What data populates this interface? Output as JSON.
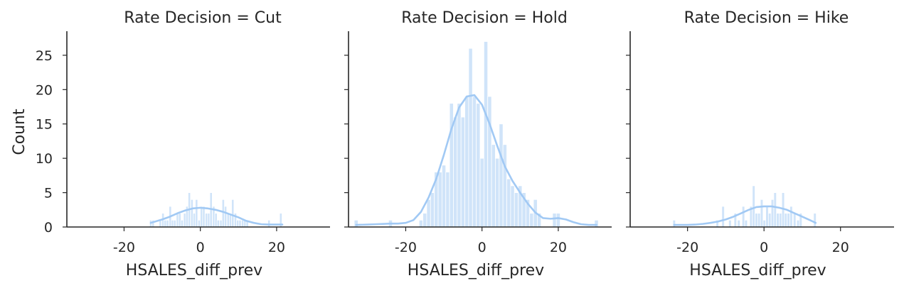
{
  "figure": {
    "ylabel": "Count",
    "color": "#a1c9f4",
    "edge_color": "#ffffff"
  },
  "chart_data": [
    {
      "type": "bar",
      "title": "Rate Decision = Cut",
      "xlabel": "HSALES_diff_prev",
      "ylabel": "Count",
      "xlim": [
        -35,
        34
      ],
      "ylim": [
        0,
        28.5
      ],
      "xticks": [
        -20,
        0,
        20
      ],
      "yticks": [
        0,
        5,
        10,
        15,
        20,
        25
      ],
      "bin_width": 0.63,
      "bins": [
        {
          "x": -13.0,
          "count": 1
        },
        {
          "x": -12.4,
          "count": 1
        },
        {
          "x": -11.7,
          "count": 0
        },
        {
          "x": -11.1,
          "count": 0
        },
        {
          "x": -10.5,
          "count": 1
        },
        {
          "x": -9.8,
          "count": 2
        },
        {
          "x": -9.2,
          "count": 1
        },
        {
          "x": -8.6,
          "count": 1
        },
        {
          "x": -7.9,
          "count": 3
        },
        {
          "x": -7.3,
          "count": 1
        },
        {
          "x": -6.7,
          "count": 1
        },
        {
          "x": -6.0,
          "count": 2
        },
        {
          "x": -5.4,
          "count": 2
        },
        {
          "x": -4.8,
          "count": 1
        },
        {
          "x": -4.1,
          "count": 2
        },
        {
          "x": -3.5,
          "count": 3
        },
        {
          "x": -2.9,
          "count": 5
        },
        {
          "x": -2.2,
          "count": 4
        },
        {
          "x": -1.6,
          "count": 2
        },
        {
          "x": -1.0,
          "count": 4
        },
        {
          "x": -0.3,
          "count": 1
        },
        {
          "x": 0.3,
          "count": 3
        },
        {
          "x": 0.9,
          "count": 3
        },
        {
          "x": 1.6,
          "count": 2
        },
        {
          "x": 2.2,
          "count": 2
        },
        {
          "x": 2.8,
          "count": 5
        },
        {
          "x": 3.5,
          "count": 3
        },
        {
          "x": 4.1,
          "count": 2
        },
        {
          "x": 4.7,
          "count": 1
        },
        {
          "x": 5.4,
          "count": 1
        },
        {
          "x": 6.0,
          "count": 4
        },
        {
          "x": 6.6,
          "count": 3
        },
        {
          "x": 7.3,
          "count": 2
        },
        {
          "x": 7.9,
          "count": 2
        },
        {
          "x": 8.5,
          "count": 4
        },
        {
          "x": 9.2,
          "count": 2
        },
        {
          "x": 9.8,
          "count": 1
        },
        {
          "x": 10.4,
          "count": 1
        },
        {
          "x": 11.1,
          "count": 1
        },
        {
          "x": 11.7,
          "count": 1
        },
        {
          "x": 12.3,
          "count": 1
        },
        {
          "x": 18.0,
          "count": 1
        },
        {
          "x": 21.1,
          "count": 2
        }
      ],
      "kde": {
        "x": [
          -13.0,
          -10,
          -8,
          -6,
          -4,
          -2,
          0,
          2,
          4,
          6,
          8,
          10,
          12,
          14,
          16,
          18,
          21.5
        ],
        "y": [
          0.6,
          1.1,
          1.5,
          2.0,
          2.4,
          2.7,
          2.8,
          2.7,
          2.5,
          2.2,
          1.8,
          1.4,
          0.9,
          0.6,
          0.4,
          0.35,
          0.35
        ]
      }
    },
    {
      "type": "bar",
      "title": "Rate Decision = Hold",
      "xlabel": "HSALES_diff_prev",
      "ylabel": "",
      "xlim": [
        -35,
        34
      ],
      "ylim": [
        0,
        28.5
      ],
      "xticks": [
        -20,
        0,
        20
      ],
      "yticks": [
        0,
        5,
        10,
        15,
        20,
        25
      ],
      "bin_width": 1.0,
      "bins": [
        {
          "x": -33.0,
          "count": 1
        },
        {
          "x": -24.0,
          "count": 1
        },
        {
          "x": -16.0,
          "count": 1
        },
        {
          "x": -15.0,
          "count": 2
        },
        {
          "x": -14.0,
          "count": 4
        },
        {
          "x": -13.0,
          "count": 5
        },
        {
          "x": -12.0,
          "count": 8
        },
        {
          "x": -11.0,
          "count": 8
        },
        {
          "x": -10.0,
          "count": 9
        },
        {
          "x": -9.0,
          "count": 8
        },
        {
          "x": -8.0,
          "count": 18
        },
        {
          "x": -7.0,
          "count": 16
        },
        {
          "x": -6.0,
          "count": 18
        },
        {
          "x": -5.0,
          "count": 16
        },
        {
          "x": -4.0,
          "count": 19
        },
        {
          "x": -3.0,
          "count": 26
        },
        {
          "x": -2.0,
          "count": 19
        },
        {
          "x": -1.0,
          "count": 18
        },
        {
          "x": 0.0,
          "count": 10
        },
        {
          "x": 1.0,
          "count": 27
        },
        {
          "x": 2.0,
          "count": 19
        },
        {
          "x": 3.0,
          "count": 12
        },
        {
          "x": 4.0,
          "count": 10
        },
        {
          "x": 5.0,
          "count": 15
        },
        {
          "x": 6.0,
          "count": 12
        },
        {
          "x": 7.0,
          "count": 7
        },
        {
          "x": 8.0,
          "count": 6
        },
        {
          "x": 9.0,
          "count": 5
        },
        {
          "x": 10.0,
          "count": 6
        },
        {
          "x": 11.0,
          "count": 5
        },
        {
          "x": 12.0,
          "count": 4
        },
        {
          "x": 13.0,
          "count": 2
        },
        {
          "x": 14.0,
          "count": 4
        },
        {
          "x": 15.0,
          "count": 2
        },
        {
          "x": 19.0,
          "count": 2
        },
        {
          "x": 20.0,
          "count": 2
        },
        {
          "x": 30.0,
          "count": 1
        }
      ],
      "kde": {
        "x": [
          -33,
          -30,
          -28,
          -26,
          -24,
          -22,
          -20,
          -18,
          -16,
          -14,
          -12,
          -10,
          -8,
          -6,
          -4,
          -2,
          0,
          2,
          4,
          6,
          8,
          10,
          12,
          14,
          16,
          18,
          20,
          22,
          24,
          26,
          28,
          30
        ],
        "y": [
          0.3,
          0.35,
          0.4,
          0.45,
          0.5,
          0.5,
          0.6,
          1.0,
          2.2,
          4.3,
          7.0,
          10.5,
          14.3,
          17.4,
          19.0,
          19.2,
          17.8,
          15.0,
          11.8,
          8.8,
          6.7,
          5.0,
          3.4,
          2.1,
          1.3,
          1.2,
          1.3,
          1.1,
          0.7,
          0.4,
          0.3,
          0.3
        ]
      }
    },
    {
      "type": "bar",
      "title": "Rate Decision = Hike",
      "xlabel": "HSALES_diff_prev",
      "ylabel": "",
      "xlim": [
        -35,
        34
      ],
      "ylim": [
        0,
        28.5
      ],
      "xticks": [
        -20,
        0,
        20
      ],
      "yticks": [
        0,
        5,
        10,
        15,
        20,
        25
      ],
      "bin_width": 0.7,
      "bins": [
        {
          "x": -23.5,
          "count": 1
        },
        {
          "x": -12.2,
          "count": 1
        },
        {
          "x": -10.7,
          "count": 3
        },
        {
          "x": -8.9,
          "count": 1
        },
        {
          "x": -7.5,
          "count": 2
        },
        {
          "x": -6.6,
          "count": 1
        },
        {
          "x": -5.4,
          "count": 3
        },
        {
          "x": -4.7,
          "count": 1
        },
        {
          "x": -3.4,
          "count": 3
        },
        {
          "x": -2.7,
          "count": 6
        },
        {
          "x": -2.0,
          "count": 2
        },
        {
          "x": -1.3,
          "count": 2
        },
        {
          "x": -0.6,
          "count": 4
        },
        {
          "x": 0.1,
          "count": 1
        },
        {
          "x": 0.8,
          "count": 3
        },
        {
          "x": 1.5,
          "count": 2
        },
        {
          "x": 2.2,
          "count": 4
        },
        {
          "x": 2.9,
          "count": 5
        },
        {
          "x": 3.6,
          "count": 2
        },
        {
          "x": 4.3,
          "count": 2
        },
        {
          "x": 5.0,
          "count": 5
        },
        {
          "x": 5.7,
          "count": 2
        },
        {
          "x": 6.4,
          "count": 2
        },
        {
          "x": 7.1,
          "count": 3
        },
        {
          "x": 8.0,
          "count": 2
        },
        {
          "x": 8.9,
          "count": 1
        },
        {
          "x": 9.6,
          "count": 2
        },
        {
          "x": 13.3,
          "count": 2
        }
      ],
      "kde": {
        "x": [
          -23.5,
          -20,
          -18,
          -16,
          -14,
          -12,
          -10,
          -8,
          -6,
          -4,
          -2,
          0,
          2,
          4,
          6,
          8,
          10,
          12,
          13.5
        ],
        "y": [
          0.3,
          0.3,
          0.35,
          0.45,
          0.6,
          0.8,
          1.1,
          1.5,
          2.0,
          2.5,
          2.9,
          3.0,
          3.0,
          2.8,
          2.5,
          2.0,
          1.5,
          1.0,
          0.6
        ]
      }
    }
  ]
}
